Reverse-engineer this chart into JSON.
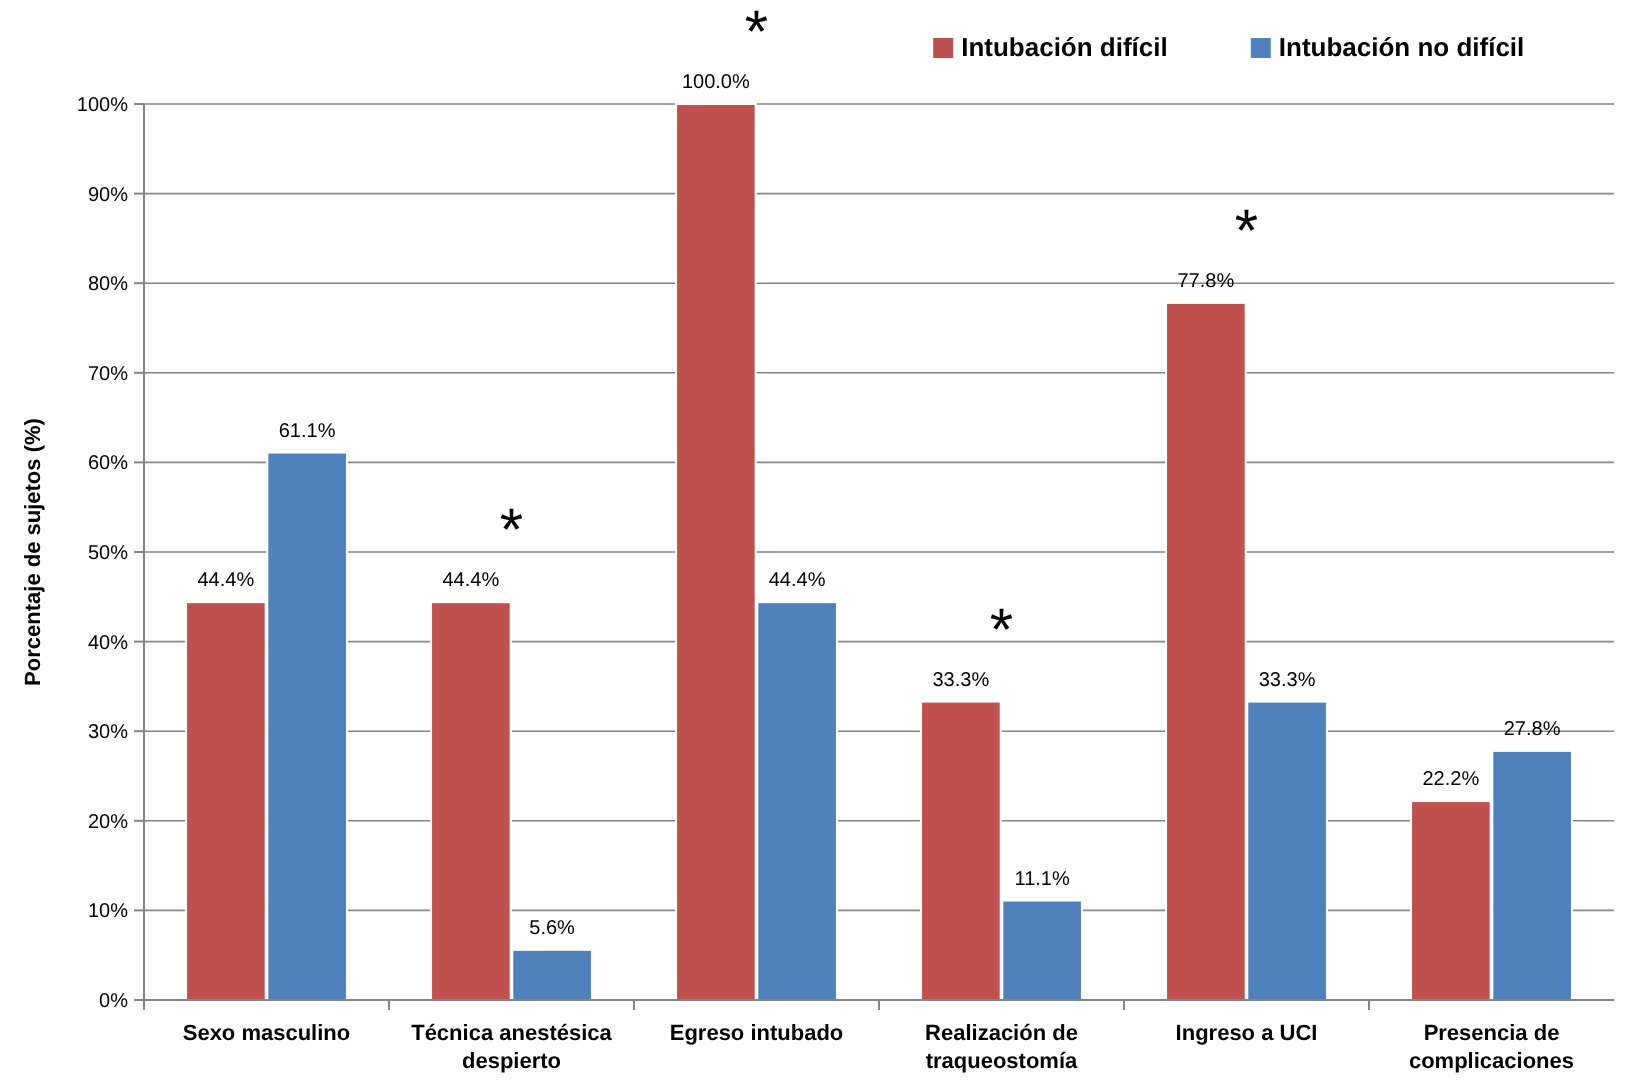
{
  "chart_data": {
    "type": "bar",
    "ylabel": "Porcentaje de sujetos (%)",
    "categories": [
      "Sexo masculino",
      "Técnica anestésica despierto",
      "Egreso intubado",
      "Realización de traqueostomía",
      "Ingreso a UCI",
      "Presencia de complicaciones"
    ],
    "series": [
      {
        "name": "Intubación difícil",
        "color": "#c0504d",
        "values": [
          44.4,
          44.4,
          100,
          33.3,
          77.8,
          22.2
        ],
        "value_labels": [
          "44.4%",
          "44.4%",
          "100.0%",
          "33.3%",
          "77.8%",
          "22.2%"
        ]
      },
      {
        "name": "Intubación no difícil",
        "color": "#4f81bd",
        "values": [
          61.1,
          5.6,
          44.4,
          11.1,
          33.3,
          27.8
        ],
        "value_labels": [
          "61.1%",
          "5.6%",
          "44.4%",
          "11.1%",
          "33.3%",
          "27.8%"
        ]
      }
    ],
    "ylim": [
      0,
      100
    ],
    "yticks": [
      {
        "value": 0,
        "label": "0%"
      },
      {
        "value": 10,
        "label": "10%"
      },
      {
        "value": 20,
        "label": "20%"
      },
      {
        "value": 30,
        "label": "30%"
      },
      {
        "value": 40,
        "label": "40%"
      },
      {
        "value": 50,
        "label": "50%"
      },
      {
        "value": 60,
        "label": "60%"
      },
      {
        "value": 70,
        "label": "70%"
      },
      {
        "value": 80,
        "label": "80%"
      },
      {
        "value": 90,
        "label": "90%"
      },
      {
        "value": 100,
        "label": "100%"
      }
    ],
    "grid": "y",
    "legend": "top right",
    "annotations": [
      {
        "text": "*",
        "x": "Técnica anestésica despierto",
        "y": 44.4
      },
      {
        "text": "*",
        "x": "Egreso intubado",
        "y": 100
      },
      {
        "text": "*",
        "x": "Realización de traqueostomía",
        "y": 33.3
      },
      {
        "text": "*",
        "x": "Ingreso a UCI",
        "y": 77.8
      }
    ]
  }
}
